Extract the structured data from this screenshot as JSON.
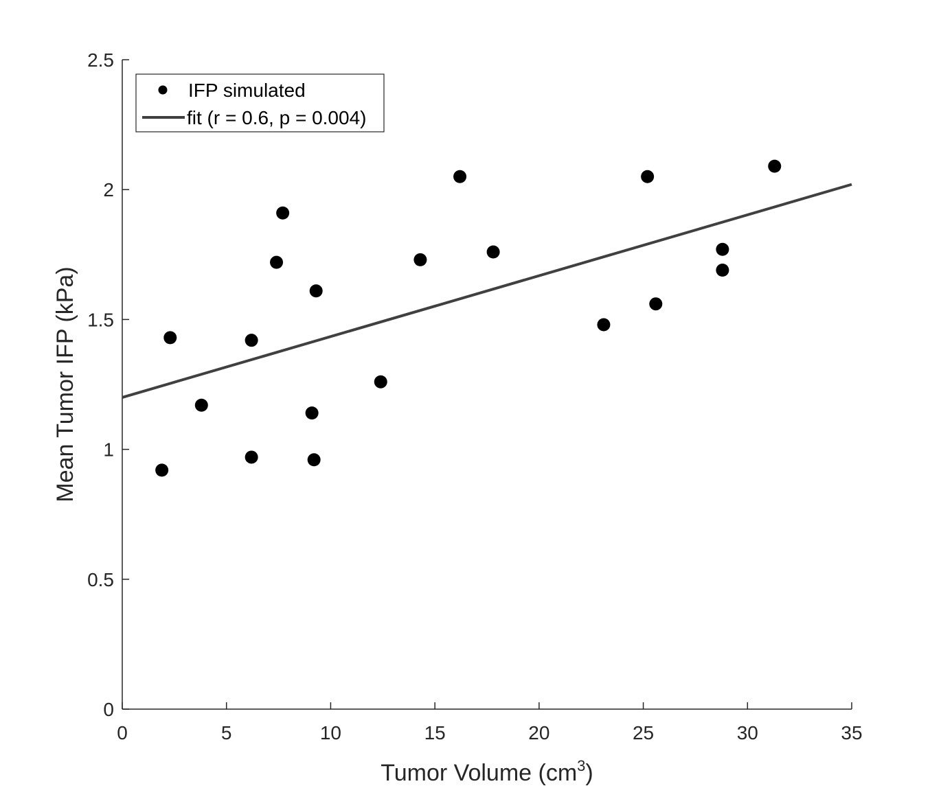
{
  "chart_data": {
    "type": "scatter",
    "title": "",
    "xlabel": "Tumor Volume (cm",
    "xlabel_sup": "3",
    "xlabel_close": ")",
    "ylabel": "Mean Tumor IFP (kPa)",
    "xlim": [
      0,
      35
    ],
    "ylim": [
      0,
      2.5
    ],
    "xticks": [
      "0",
      "5",
      "10",
      "15",
      "20",
      "25",
      "30",
      "35"
    ],
    "yticks": [
      "0",
      "0.5",
      "1",
      "1.5",
      "2",
      "2.5"
    ],
    "legend_position": "top-left",
    "series": [
      {
        "name": "IFP simulated",
        "kind": "scatter",
        "color": "#000000",
        "x": [
          1.9,
          2.3,
          3.8,
          6.2,
          6.2,
          7.4,
          7.7,
          9.1,
          9.2,
          9.3,
          12.4,
          14.3,
          16.2,
          17.8,
          23.1,
          25.2,
          25.6,
          28.8,
          28.8,
          31.3
        ],
        "y": [
          0.92,
          1.43,
          1.17,
          0.97,
          1.42,
          1.72,
          1.91,
          1.14,
          0.96,
          1.61,
          1.26,
          1.73,
          2.05,
          1.76,
          1.48,
          2.05,
          1.56,
          1.77,
          1.69,
          2.09
        ]
      },
      {
        "name": "fit (r = 0.6, p = 0.004)",
        "kind": "line",
        "color": "#404040",
        "x": [
          0,
          35
        ],
        "y": [
          1.2,
          2.02
        ]
      }
    ]
  }
}
